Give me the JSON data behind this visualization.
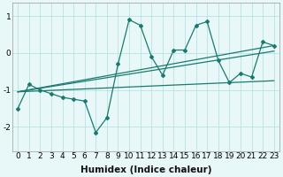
{
  "xlabel": "Humidex (Indice chaleur)",
  "ylabel": "",
  "bg_color": "#e8f8f8",
  "line_color": "#1a7a6e",
  "xlim": [
    -0.5,
    23.5
  ],
  "ylim": [
    -2.65,
    1.35
  ],
  "xticks": [
    0,
    1,
    2,
    3,
    4,
    5,
    6,
    7,
    8,
    9,
    10,
    11,
    12,
    13,
    14,
    15,
    16,
    17,
    18,
    19,
    20,
    21,
    22,
    23
  ],
  "yticks": [
    -2,
    -1,
    0,
    1
  ],
  "main_x": [
    0,
    1,
    2,
    3,
    4,
    5,
    6,
    7,
    8,
    9,
    10,
    11,
    12,
    13,
    14,
    15,
    16,
    17,
    18,
    19,
    20,
    21,
    22,
    23
  ],
  "main_y": [
    -1.5,
    -0.85,
    -1.0,
    -1.1,
    -1.2,
    -1.25,
    -1.3,
    -2.15,
    -1.75,
    -0.3,
    0.9,
    0.75,
    -0.1,
    -0.6,
    0.08,
    0.08,
    0.75,
    0.85,
    -0.2,
    -0.8,
    -0.55,
    -0.65,
    0.3,
    0.2
  ],
  "line2_x": [
    0,
    23
  ],
  "line2_y": [
    -1.05,
    -0.75
  ],
  "line3_x": [
    0,
    23
  ],
  "line3_y": [
    -1.05,
    0.2
  ],
  "line4_x": [
    0,
    23
  ],
  "line4_y": [
    -1.05,
    0.05
  ],
  "grid_color": "#b0dede",
  "tick_fontsize": 6.5,
  "xlabel_fontsize": 7.5
}
